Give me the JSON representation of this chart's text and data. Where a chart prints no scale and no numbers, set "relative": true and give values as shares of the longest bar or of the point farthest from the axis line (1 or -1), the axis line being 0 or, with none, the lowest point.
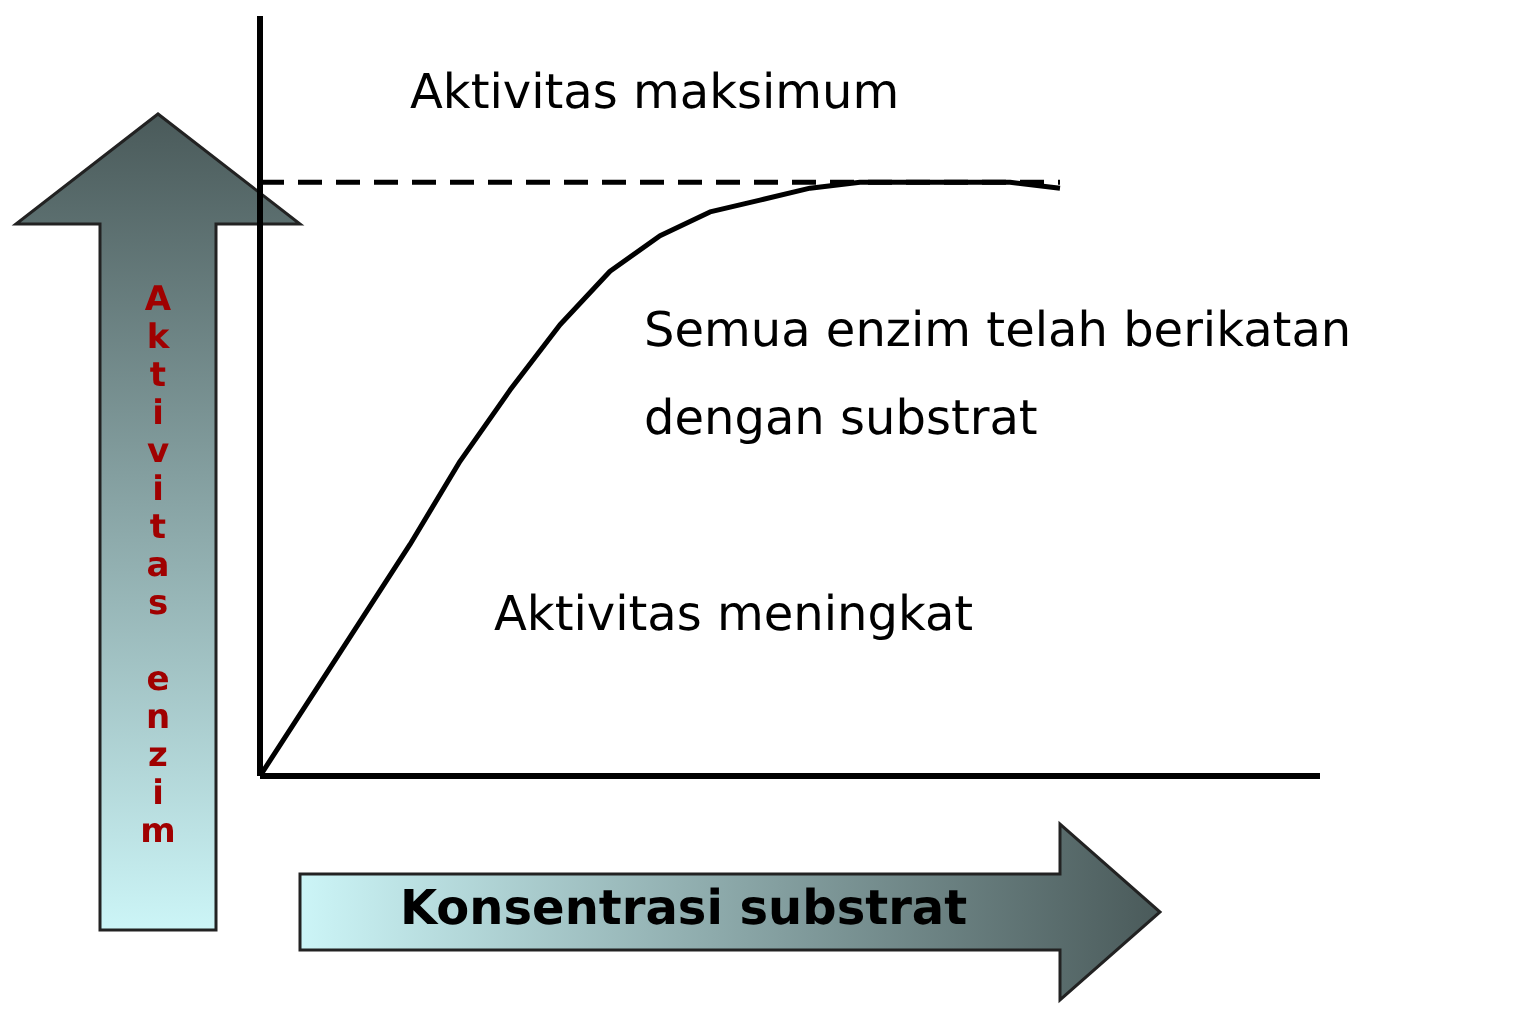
{
  "chart_data": {
    "type": "line",
    "relative": true,
    "xlabel": "Konsentrasi substrat",
    "ylabel": "Aktivitas enzim",
    "categories": [
      null,
      null,
      null,
      null,
      null,
      null,
      null,
      null,
      null,
      null,
      null,
      null,
      null,
      null,
      null,
      null,
      null
    ],
    "values": [
      0,
      0.13,
      0.26,
      0.39,
      0.53,
      0.65,
      0.76,
      0.85,
      0.91,
      0.95,
      0.97,
      0.99,
      1,
      1,
      1,
      1,
      0.99
    ],
    "color": "#000000",
    "line_style": "solid",
    "ref_lines": [
      {
        "axis": "y",
        "value": 1,
        "label": "Aktivitas maksimum",
        "color": "#000000",
        "line_style": "dashed"
      }
    ],
    "annotations": [
      "Semua enzim telah berikatan\ndengan substrat",
      "Aktivitas meningkat"
    ],
    "grid": false,
    "legend": false
  }
}
